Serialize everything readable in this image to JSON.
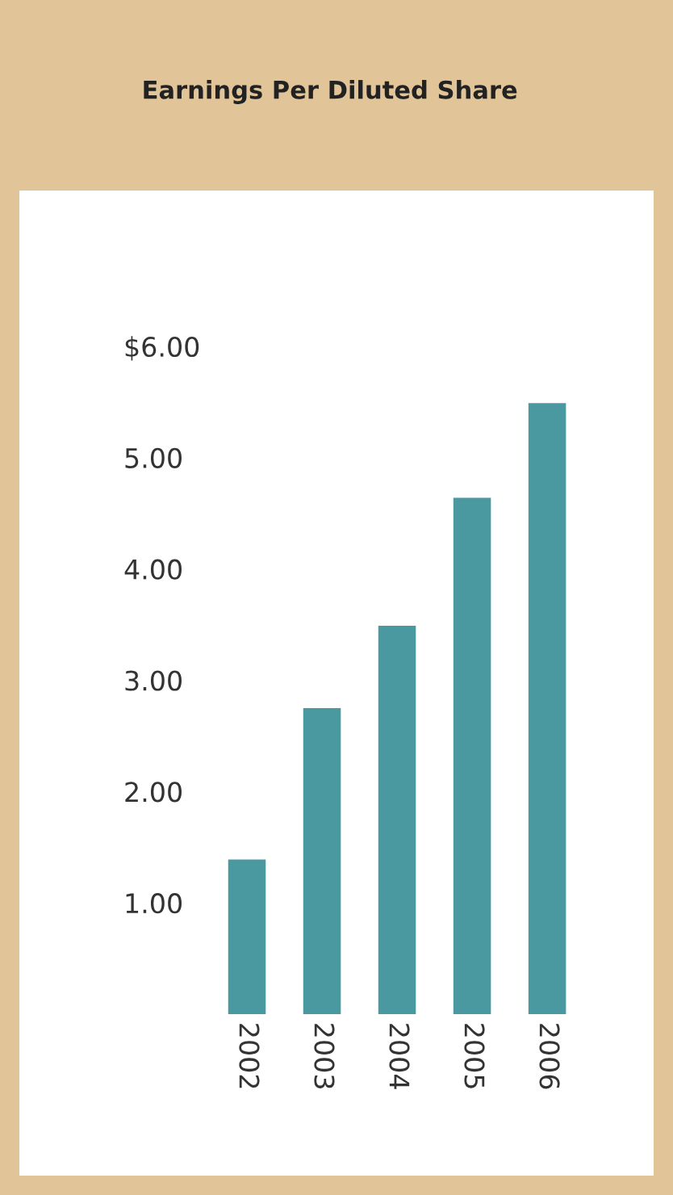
{
  "chart_data": {
    "type": "bar",
    "title": "Earnings Per Diluted Share",
    "categories": [
      "2002",
      "2003",
      "2004",
      "2005",
      "2006"
    ],
    "values": [
      1.39,
      2.75,
      3.49,
      4.64,
      5.49
    ],
    "color": "#4a98a0",
    "ylim": [
      0,
      7.4
    ],
    "yticks": [
      {
        "value": 1,
        "label": "1.00"
      },
      {
        "value": 2,
        "label": "2.00"
      },
      {
        "value": 3,
        "label": "3.00"
      },
      {
        "value": 4,
        "label": "4.00"
      },
      {
        "value": 5,
        "label": "5.00"
      },
      {
        "value": 6,
        "label": "$6.00"
      }
    ],
    "grid": false
  }
}
